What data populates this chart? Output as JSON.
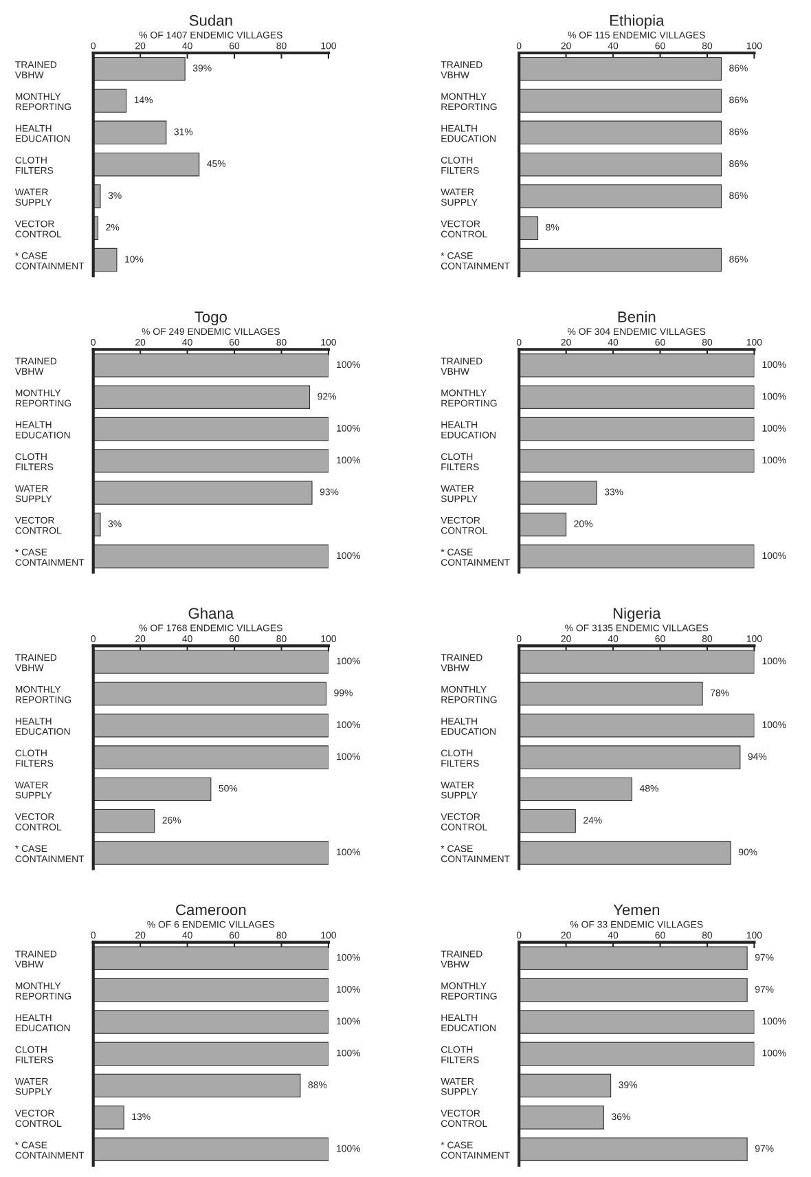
{
  "chart_data": [
    {
      "type": "bar",
      "orientation": "horizontal",
      "title": "Sudan",
      "xlabel": "% OF 1407 ENDEMIC VILLAGES",
      "categories": [
        "TRAINED\nVBHW",
        "MONTHLY\nREPORTING",
        "HEALTH\nEDUCATION",
        "CLOTH\nFILTERS",
        "WATER\nSUPPLY",
        "VECTOR\nCONTROL",
        "* CASE\nCONTAINMENT"
      ],
      "values": [
        39,
        14,
        31,
        45,
        3,
        2,
        10
      ],
      "value_labels": [
        "39%",
        "14%",
        "31%",
        "45%",
        "3%",
        "2%",
        "10%"
      ],
      "color": "#a9a9a9",
      "xlim": [
        0,
        100
      ],
      "xticks": [
        0,
        20,
        40,
        60,
        80,
        100
      ],
      "grid": false,
      "legend": false
    },
    {
      "type": "bar",
      "orientation": "horizontal",
      "title": "Ethiopia",
      "xlabel": "% OF 115 ENDEMIC VILLAGES",
      "categories": [
        "TRAINED\nVBHW",
        "MONTHLY\nREPORTING",
        "HEALTH\nEDUCATION",
        "CLOTH\nFILTERS",
        "WATER\nSUPPLY",
        "VECTOR\nCONTROL",
        "* CASE\nCONTAINMENT"
      ],
      "values": [
        86,
        86,
        86,
        86,
        86,
        8,
        86
      ],
      "value_labels": [
        "86%",
        "86%",
        "86%",
        "86%",
        "86%",
        "8%",
        "86%"
      ],
      "color": "#a9a9a9",
      "xlim": [
        0,
        100
      ],
      "xticks": [
        0,
        20,
        40,
        60,
        80,
        100
      ],
      "grid": false,
      "legend": false
    },
    {
      "type": "bar",
      "orientation": "horizontal",
      "title": "Togo",
      "xlabel": "% OF 249 ENDEMIC VILLAGES",
      "categories": [
        "TRAINED\nVBHW",
        "MONTHLY\nREPORTING",
        "HEALTH\nEDUCATION",
        "CLOTH\nFILTERS",
        "WATER\nSUPPLY",
        "VECTOR\nCONTROL",
        "* CASE\nCONTAINMENT"
      ],
      "values": [
        100,
        92,
        100,
        100,
        93,
        3,
        100
      ],
      "value_labels": [
        "100%",
        "92%",
        "100%",
        "100%",
        "93%",
        "3%",
        "100%"
      ],
      "color": "#a9a9a9",
      "xlim": [
        0,
        100
      ],
      "xticks": [
        0,
        20,
        40,
        60,
        80,
        100
      ],
      "grid": false,
      "legend": false
    },
    {
      "type": "bar",
      "orientation": "horizontal",
      "title": "Benin",
      "xlabel": "% OF 304 ENDEMIC VILLAGES",
      "categories": [
        "TRAINED\nVBHW",
        "MONTHLY\nREPORTING",
        "HEALTH\nEDUCATION",
        "CLOTH\nFILTERS",
        "WATER\nSUPPLY",
        "VECTOR\nCONTROL",
        "* CASE\nCONTAINMENT"
      ],
      "values": [
        100,
        100,
        100,
        100,
        33,
        20,
        100
      ],
      "value_labels": [
        "100%",
        "100%",
        "100%",
        "100%",
        "33%",
        "20%",
        "100%"
      ],
      "color": "#a9a9a9",
      "xlim": [
        0,
        100
      ],
      "xticks": [
        0,
        20,
        40,
        60,
        80,
        100
      ],
      "grid": false,
      "legend": false
    },
    {
      "type": "bar",
      "orientation": "horizontal",
      "title": "Ghana",
      "xlabel": "% OF 1768 ENDEMIC VILLAGES",
      "categories": [
        "TRAINED\nVBHW",
        "MONTHLY\nREPORTING",
        "HEALTH\nEDUCATION",
        "CLOTH\nFILTERS",
        "WATER\nSUPPLY",
        "VECTOR\nCONTROL",
        "* CASE\nCONTAINMENT"
      ],
      "values": [
        100,
        99,
        100,
        100,
        50,
        26,
        100
      ],
      "value_labels": [
        "100%",
        "99%",
        "100%",
        "100%",
        "50%",
        "26%",
        "100%"
      ],
      "color": "#a9a9a9",
      "xlim": [
        0,
        100
      ],
      "xticks": [
        0,
        20,
        40,
        60,
        80,
        100
      ],
      "grid": false,
      "legend": false
    },
    {
      "type": "bar",
      "orientation": "horizontal",
      "title": "Nigeria",
      "xlabel": "% OF 3135 ENDEMIC VILLAGES",
      "categories": [
        "TRAINED\nVBHW",
        "MONTHLY\nREPORTING",
        "HEALTH\nEDUCATION",
        "CLOTH\nFILTERS",
        "WATER\nSUPPLY",
        "VECTOR\nCONTROL",
        "* CASE\nCONTAINMENT"
      ],
      "values": [
        100,
        78,
        100,
        94,
        48,
        24,
        90
      ],
      "value_labels": [
        "100%",
        "78%",
        "100%",
        "94%",
        "48%",
        "24%",
        "90%"
      ],
      "color": "#a9a9a9",
      "xlim": [
        0,
        100
      ],
      "xticks": [
        0,
        20,
        40,
        60,
        80,
        100
      ],
      "grid": false,
      "legend": false
    },
    {
      "type": "bar",
      "orientation": "horizontal",
      "title": "Cameroon",
      "xlabel": "% OF 6 ENDEMIC VILLAGES",
      "categories": [
        "TRAINED\nVBHW",
        "MONTHLY\nREPORTING",
        "HEALTH\nEDUCATION",
        "CLOTH\nFILTERS",
        "WATER\nSUPPLY",
        "VECTOR\nCONTROL",
        "* CASE\nCONTAINMENT"
      ],
      "values": [
        100,
        100,
        100,
        100,
        88,
        13,
        100
      ],
      "value_labels": [
        "100%",
        "100%",
        "100%",
        "100%",
        "88%",
        "13%",
        "100%"
      ],
      "color": "#a9a9a9",
      "xlim": [
        0,
        100
      ],
      "xticks": [
        0,
        20,
        40,
        60,
        80,
        100
      ],
      "grid": false,
      "legend": false
    },
    {
      "type": "bar",
      "orientation": "horizontal",
      "title": "Yemen",
      "xlabel": "% OF 33 ENDEMIC VILLAGES",
      "categories": [
        "TRAINED\nVBHW",
        "MONTHLY\nREPORTING",
        "HEALTH\nEDUCATION",
        "CLOTH\nFILTERS",
        "WATER\nSUPPLY",
        "VECTOR\nCONTROL",
        "* CASE\nCONTAINMENT"
      ],
      "values": [
        97,
        97,
        100,
        100,
        39,
        36,
        97
      ],
      "value_labels": [
        "97%",
        "97%",
        "100%",
        "100%",
        "39%",
        "36%",
        "97%"
      ],
      "color": "#a9a9a9",
      "xlim": [
        0,
        100
      ],
      "xticks": [
        0,
        20,
        40,
        60,
        80,
        100
      ],
      "grid": false,
      "legend": false
    }
  ]
}
